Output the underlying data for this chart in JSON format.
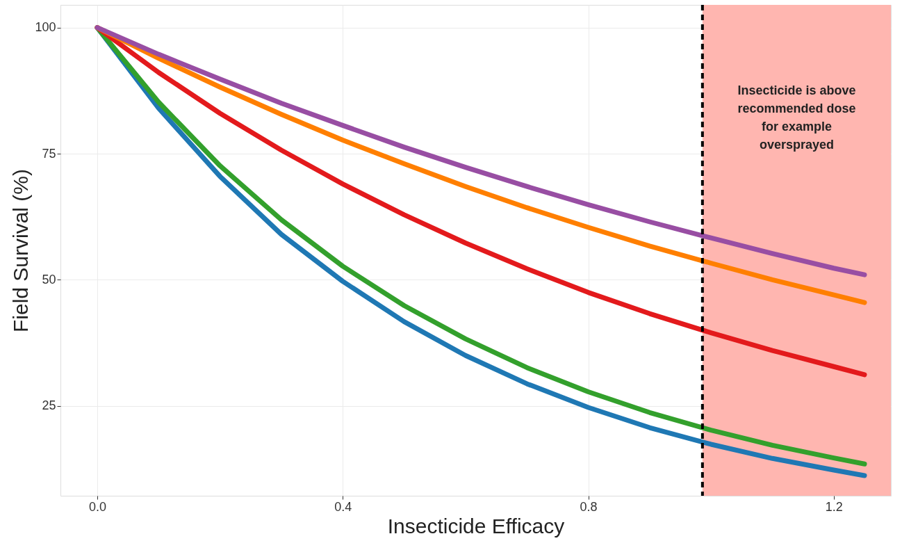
{
  "chart_data": {
    "type": "line",
    "xlabel": "Insecticide Efficacy",
    "ylabel": "Field Survival (%)",
    "x": [
      0,
      0.1,
      0.2,
      0.3,
      0.4,
      0.5,
      0.6,
      0.7,
      0.8,
      0.9,
      1.0,
      1.1,
      1.2,
      1.25
    ],
    "series": [
      {
        "color": "#1f78b4",
        "values": [
          100,
          84,
          70.5,
          59,
          49.7,
          41.7,
          35,
          29.4,
          24.7,
          20.7,
          17.4,
          14.6,
          12.3,
          11.2
        ]
      },
      {
        "color": "#33a02c",
        "values": [
          100,
          85.2,
          72.6,
          61.9,
          52.7,
          44.9,
          38.3,
          32.6,
          27.8,
          23.7,
          20.2,
          17.2,
          14.7,
          13.5
        ]
      },
      {
        "color": "#e31a1c",
        "values": [
          100,
          91.1,
          83,
          75.7,
          69,
          62.9,
          57.3,
          52.2,
          47.5,
          43.3,
          39.5,
          36,
          32.8,
          31.2
        ]
      },
      {
        "color": "#ff7f00",
        "values": [
          100,
          93.9,
          88.2,
          82.8,
          77.7,
          73,
          68.5,
          64.3,
          60.4,
          56.7,
          53.3,
          50,
          47,
          45.5
        ]
      },
      {
        "color": "#984ea3",
        "values": [
          100,
          94.7,
          89.8,
          85,
          80.6,
          76.3,
          72.3,
          68.5,
          64.9,
          61.5,
          58.3,
          55.2,
          52.3,
          51
        ]
      }
    ],
    "xlim": [
      -0.06,
      1.293
    ],
    "ylim": [
      7.2,
      104.5
    ],
    "xticks": [
      {
        "value": 0,
        "label": "0.0"
      },
      0.4,
      0.8,
      1.2
    ],
    "yticks": [
      25,
      50,
      75,
      100
    ],
    "grid": true,
    "marker": "none",
    "line_style": "solid",
    "ref_lines": [
      {
        "axis": "x",
        "value": 0.986,
        "color": "#000000",
        "line_style": "dashed"
      }
    ],
    "bands": [
      {
        "axis": "x",
        "from": 0.986,
        "to": 1.293,
        "color": "#ffb6b0",
        "label": "Insecticide is above\nrecommended dose\nfor example\noversprayed"
      }
    ]
  }
}
